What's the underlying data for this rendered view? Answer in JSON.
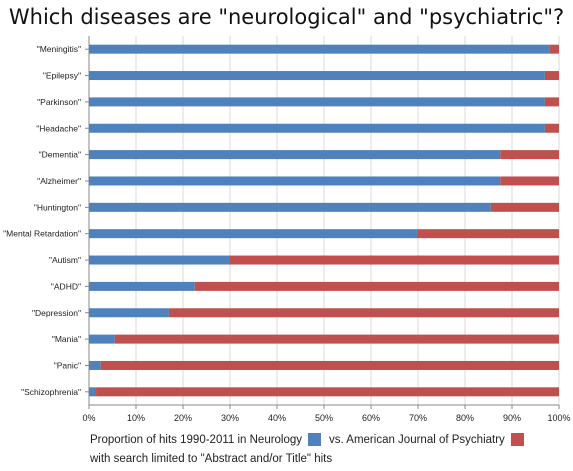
{
  "chart_data": {
    "type": "bar",
    "orientation": "horizontal",
    "stacked": true,
    "title": "Which diseases are \"neurological\" and \"psychiatric\"?",
    "categories": [
      "\"Meningitis\"",
      "\"Epilepsy\"",
      "\"Parkinson\"",
      "\"Headache\"",
      "\"Dementia\"",
      "\"Alzheimer\"",
      "\"Huntington\"",
      "\"Mental Retardation\"",
      "\"Autism\"",
      "\"ADHD\"",
      "\"Depression\"",
      "\"Mania\"",
      "\"Panic\"",
      "\"Schizophrenia\""
    ],
    "series": [
      {
        "color": "#4f81bd",
        "values": [
          98,
          97,
          97,
          97,
          87.5,
          87.5,
          85.5,
          70,
          30,
          22.5,
          17,
          5.5,
          2.5,
          1.5
        ]
      },
      {
        "color": "#c0504d",
        "values": [
          2,
          3,
          3,
          3,
          12.5,
          12.5,
          14.5,
          30,
          70,
          77.5,
          83,
          94.5,
          97.5,
          98.5
        ]
      }
    ],
    "xlim": [
      0,
      100
    ],
    "x_tick_labels": [
      "0%",
      "10%",
      "20%",
      "30%",
      "40%",
      "50%",
      "60%",
      "70%",
      "80%",
      "90%",
      "100%"
    ],
    "grid": true,
    "legend": {
      "placement": "bottom",
      "text_before_blue": "Proportion of hits 1990-2011 in Neurology",
      "text_before_red": "vs. American Journal of Psychiatry",
      "note": "with search limited to \"Abstract and/or Title\" hits"
    }
  }
}
